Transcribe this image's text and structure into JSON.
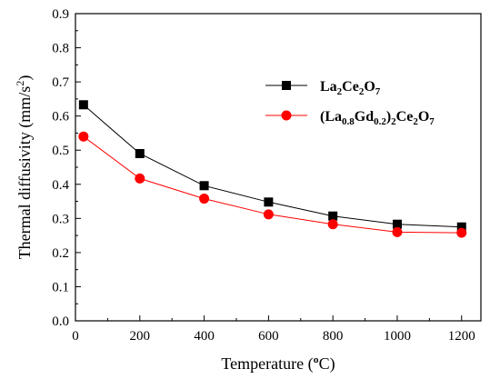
{
  "chart_data": {
    "type": "line",
    "xlabel": "Temperature (°C)",
    "ylabel": "Thermal diffusivity (mm/s²)",
    "xlim": [
      0,
      1260
    ],
    "ylim": [
      0.0,
      0.9
    ],
    "x_ticks": [
      "0",
      "200",
      "400",
      "600",
      "800",
      "1000",
      "1200"
    ],
    "y_ticks": [
      "0.0",
      "0.1",
      "0.2",
      "0.3",
      "0.4",
      "0.5",
      "0.6",
      "0.7",
      "0.8",
      "0.9"
    ],
    "grid": false,
    "legend_position": "upper-right",
    "x": [
      25,
      200,
      400,
      600,
      800,
      1000,
      1200
    ],
    "series": [
      {
        "name": "La2Ce2O7",
        "color": "#000000",
        "marker": "square",
        "values": [
          0.633,
          0.49,
          0.396,
          0.348,
          0.307,
          0.283,
          0.275
        ]
      },
      {
        "name": "(La0.8Gd0.2)2Ce2O7",
        "color": "#ff0000",
        "marker": "circle",
        "values": [
          0.54,
          0.417,
          0.358,
          0.312,
          0.283,
          0.26,
          0.258
        ]
      }
    ]
  }
}
